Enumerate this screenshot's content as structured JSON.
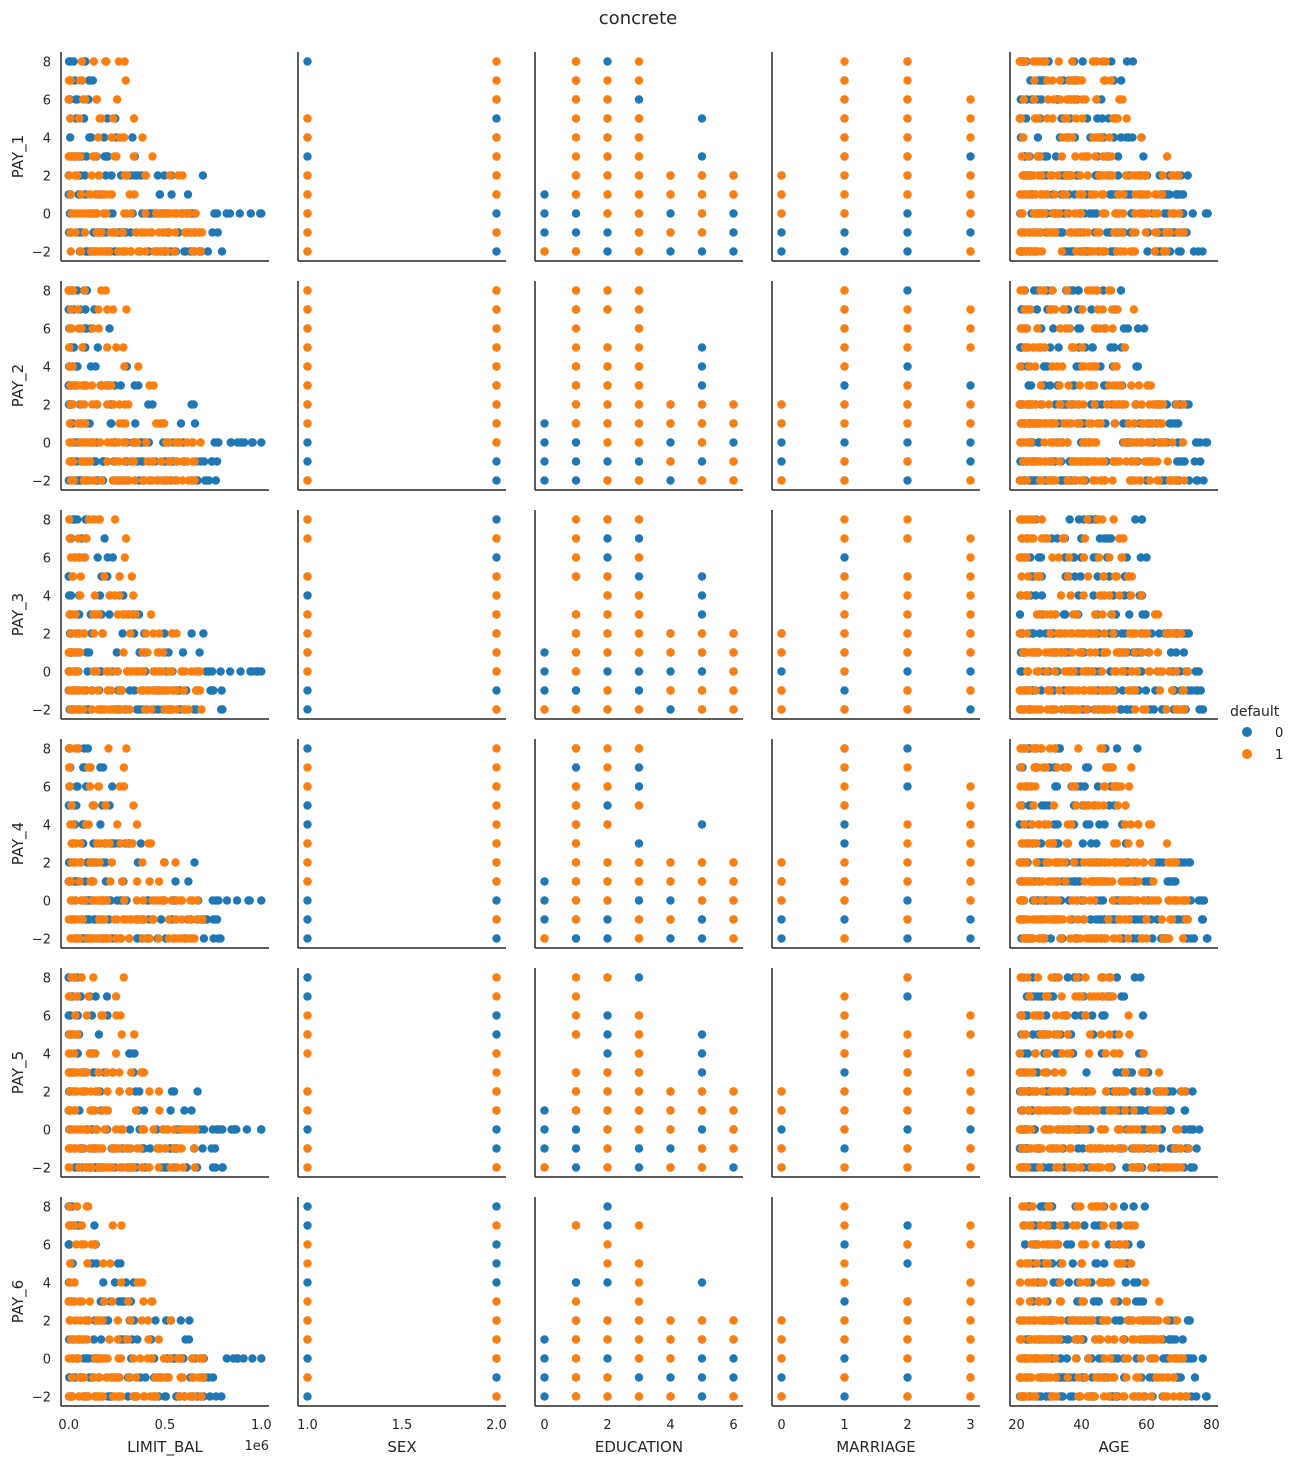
{
  "chart_data": {
    "type": "scatter",
    "title": "concrete",
    "x_vars": [
      "LIMIT_BAL",
      "SEX",
      "EDUCATION",
      "MARRIAGE",
      "AGE"
    ],
    "y_vars": [
      "PAY_1",
      "PAY_2",
      "PAY_3",
      "PAY_4",
      "PAY_5",
      "PAY_6"
    ],
    "x_axes": [
      {
        "name": "LIMIT_BAL",
        "xlim": [
          -0.04,
          1.04
        ],
        "ticks": [
          0,
          0.5,
          1.0
        ],
        "tick_labels": [
          "0.0",
          "0.5",
          "1.0"
        ],
        "offset_label": "1e6"
      },
      {
        "name": "SEX",
        "xlim": [
          0.95,
          2.05
        ],
        "ticks": [
          1.0,
          1.5,
          2.0
        ],
        "tick_labels": [
          "1.0",
          "1.5",
          "2.0"
        ]
      },
      {
        "name": "EDUCATION",
        "xlim": [
          -0.3,
          6.3
        ],
        "ticks": [
          0,
          2,
          4,
          6
        ],
        "tick_labels": [
          "0",
          "2",
          "4",
          "6"
        ]
      },
      {
        "name": "MARRIAGE",
        "xlim": [
          -0.15,
          3.15
        ],
        "ticks": [
          0,
          1,
          2,
          3
        ],
        "tick_labels": [
          "0",
          "1",
          "2",
          "3"
        ]
      },
      {
        "name": "AGE",
        "xlim": [
          18,
          82
        ],
        "ticks": [
          20,
          40,
          60,
          80
        ],
        "tick_labels": [
          "20",
          "40",
          "60",
          "80"
        ]
      }
    ],
    "y_axis": {
      "ylim": [
        -2.5,
        8.5
      ],
      "ticks": [
        -2,
        0,
        2,
        4,
        6,
        8
      ],
      "tick_labels": [
        "−2",
        "0",
        "2",
        "4",
        "6",
        "8"
      ]
    },
    "hue": {
      "title": "default",
      "levels": [
        {
          "label": "0",
          "color": "#1f77b4"
        },
        {
          "label": "1",
          "color": "#ff7f0e"
        }
      ]
    },
    "legend_placement": "right",
    "grid": false,
    "categorical_distribution": {
      "EDUCATION": {
        "x": [
          0,
          1,
          2,
          3,
          4,
          5,
          6
        ],
        "max_level_class0": [
          1,
          8,
          8,
          8,
          2,
          5,
          2
        ],
        "max_level_class1": [
          -2,
          8,
          8,
          8,
          2,
          2,
          2
        ]
      },
      "MARRIAGE": {
        "x": [
          0,
          1,
          2,
          3
        ],
        "max_level_class0": [
          2,
          8,
          8,
          3
        ],
        "max_level_class1": [
          2,
          8,
          8,
          7
        ]
      },
      "SEX": {
        "x": [
          1,
          2
        ],
        "max_level_class0": [
          8,
          8
        ],
        "max_level_class1": [
          8,
          8
        ]
      }
    },
    "continuous_distribution": {
      "LIMIT_BAL": {
        "class0": {
          "level_max_x": [
            [
              -2,
              0.8
            ],
            [
              -1,
              0.8
            ],
            [
              0,
              1.0
            ],
            [
              1,
              0.7
            ],
            [
              2,
              0.7
            ],
            [
              3,
              0.4
            ],
            [
              4,
              0.35
            ],
            [
              5,
              0.3
            ],
            [
              6,
              0.25
            ],
            [
              7,
              0.2
            ],
            [
              8,
              0.1
            ]
          ]
        },
        "class1": {
          "level_max_x": [
            [
              -2,
              0.7
            ],
            [
              -1,
              0.7
            ],
            [
              0,
              0.7
            ],
            [
              1,
              0.5
            ],
            [
              2,
              0.6
            ],
            [
              3,
              0.45
            ],
            [
              4,
              0.4
            ],
            [
              5,
              0.35
            ],
            [
              6,
              0.3
            ],
            [
              7,
              0.3
            ],
            [
              8,
              0.3
            ]
          ]
        }
      },
      "AGE": {
        "class0": {
          "level_range": [
            [
              -2,
              21,
              79
            ],
            [
              -1,
              21,
              79
            ],
            [
              0,
              21,
              79
            ],
            [
              1,
              21,
              72
            ],
            [
              2,
              21,
              75
            ],
            [
              3,
              21,
              62
            ],
            [
              4,
              21,
              60
            ],
            [
              5,
              21,
              55
            ],
            [
              6,
              21,
              60
            ],
            [
              7,
              21,
              55
            ],
            [
              8,
              21,
              60
            ]
          ]
        },
        "class1": {
          "level_range": [
            [
              -2,
              21,
              73
            ],
            [
              -1,
              21,
              73
            ],
            [
              0,
              21,
              73
            ],
            [
              1,
              21,
              65
            ],
            [
              2,
              21,
              72
            ],
            [
              3,
              21,
              68
            ],
            [
              4,
              21,
              63
            ],
            [
              5,
              21,
              58
            ],
            [
              6,
              21,
              55
            ],
            [
              7,
              21,
              57
            ],
            [
              8,
              21,
              50
            ]
          ]
        }
      }
    }
  }
}
